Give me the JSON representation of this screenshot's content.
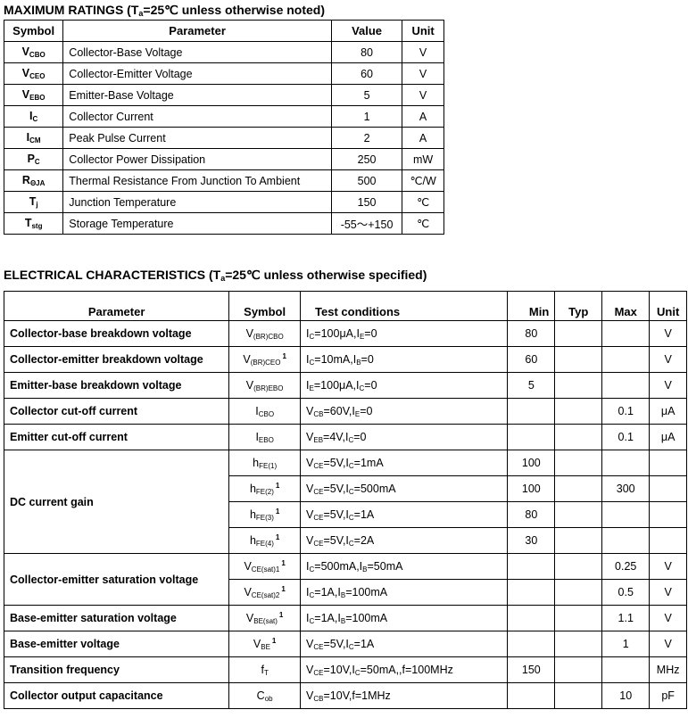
{
  "max_ratings": {
    "title_pre": "MAXIMUM RATINGS (T",
    "title_sub": "a",
    "title_post": "=25℃ unless otherwise noted)",
    "headers": [
      "Symbol",
      "Parameter",
      "Value",
      "Unit"
    ],
    "rows": [
      {
        "symbol": {
          "main": "V",
          "sub": "CBO"
        },
        "parameter": "Collector-Base Voltage",
        "value": "80",
        "unit": "V"
      },
      {
        "symbol": {
          "main": "V",
          "sub": "CEO"
        },
        "parameter": "Collector-Emitter Voltage",
        "value": "60",
        "unit": "V"
      },
      {
        "symbol": {
          "main": "V",
          "sub": "EBO"
        },
        "parameter": "Emitter-Base Voltage",
        "value": "5",
        "unit": "V"
      },
      {
        "symbol": {
          "main": "I",
          "sub": "C"
        },
        "parameter": "Collector Current",
        "value": "1",
        "unit": "A"
      },
      {
        "symbol": {
          "main": "I",
          "sub": "CM"
        },
        "parameter": "Peak Pulse Current",
        "value": "2",
        "unit": "A"
      },
      {
        "symbol": {
          "main": "P",
          "sub": "C"
        },
        "parameter": "Collector Power Dissipation",
        "value": "250",
        "unit": "mW"
      },
      {
        "symbol": {
          "main": "R",
          "sub": "ΘJA"
        },
        "parameter": "Thermal Resistance From Junction To Ambient",
        "value": "500",
        "unit": "℃/W"
      },
      {
        "symbol": {
          "main": "T",
          "sub": "j"
        },
        "parameter": "Junction Temperature",
        "value": "150",
        "unit": "℃"
      },
      {
        "symbol": {
          "main": "T",
          "sub": "stg"
        },
        "parameter": "Storage Temperature",
        "value": "-55～+150",
        "unit": "℃"
      }
    ]
  },
  "electrical": {
    "title_pre": "ELECTRICAL CHARACTERISTICS (T",
    "title_sub": "a",
    "title_post": "=25℃ unless otherwise specified)",
    "headers": [
      "Parameter",
      "Symbol",
      "Test  conditions",
      "Min",
      "Typ",
      "Max",
      "Unit"
    ],
    "groups": [
      {
        "parameter": "Collector-base breakdown voltage",
        "rows": [
          {
            "symbol": {
              "main": "V",
              "sub": "(BR)CBO"
            },
            "cond": [
              "I",
              {
                "sub": "C"
              },
              "=100μA,I",
              {
                "sub": "E"
              },
              "=0"
            ],
            "min": "80",
            "typ": "",
            "max": "",
            "unit": "V"
          }
        ]
      },
      {
        "parameter": "Collector-emitter breakdown voltage",
        "rows": [
          {
            "symbol": {
              "main": "V",
              "sub": "(BR)CEO",
              "sup": "1"
            },
            "cond": [
              "I",
              {
                "sub": "C"
              },
              "=10mA,I",
              {
                "sub": "B"
              },
              "=0"
            ],
            "min": "60",
            "typ": "",
            "max": "",
            "unit": "V"
          }
        ]
      },
      {
        "parameter": "Emitter-base breakdown voltage",
        "rows": [
          {
            "symbol": {
              "main": "V",
              "sub": "(BR)EBO"
            },
            "cond": [
              "I",
              {
                "sub": "E"
              },
              "=100μA,I",
              {
                "sub": "C"
              },
              "=0"
            ],
            "min": "5",
            "typ": "",
            "max": "",
            "unit": "V"
          }
        ]
      },
      {
        "parameter": "Collector cut-off current",
        "rows": [
          {
            "symbol": {
              "main": "I",
              "sub": "CBO"
            },
            "cond": [
              "V",
              {
                "sub": "CB"
              },
              "=60V,I",
              {
                "sub": "E"
              },
              "=0"
            ],
            "min": "",
            "typ": "",
            "max": "0.1",
            "unit": "μA"
          }
        ]
      },
      {
        "parameter": "Emitter cut-off current",
        "rows": [
          {
            "symbol": {
              "main": "I",
              "sub": "EBO"
            },
            "cond": [
              "V",
              {
                "sub": "EB"
              },
              "=4V,I",
              {
                "sub": "C"
              },
              "=0"
            ],
            "min": "",
            "typ": "",
            "max": "0.1",
            "unit": "μA"
          }
        ]
      },
      {
        "parameter": "DC current gain",
        "rows": [
          {
            "symbol": {
              "main": "h",
              "sub": "FE(1)"
            },
            "cond": [
              "V",
              {
                "sub": "CE"
              },
              "=5V,I",
              {
                "sub": "C"
              },
              "=1mA"
            ],
            "min": "100",
            "typ": "",
            "max": "",
            "unit": ""
          },
          {
            "symbol": {
              "main": "h",
              "sub": "FE(2)",
              "sup": "1"
            },
            "cond": [
              "V",
              {
                "sub": "CE"
              },
              "=5V,I",
              {
                "sub": "C"
              },
              "=500mA"
            ],
            "min": "100",
            "typ": "",
            "max": "300",
            "unit": ""
          },
          {
            "symbol": {
              "main": "h",
              "sub": "FE(3)",
              "sup": "1"
            },
            "cond": [
              "V",
              {
                "sub": "CE"
              },
              "=5V,I",
              {
                "sub": "C"
              },
              "=1A"
            ],
            "min": "80",
            "typ": "",
            "max": "",
            "unit": ""
          },
          {
            "symbol": {
              "main": "h",
              "sub": "FE(4)",
              "sup": "1"
            },
            "cond": [
              "V",
              {
                "sub": "CE"
              },
              "=5V,I",
              {
                "sub": "C"
              },
              "=2A"
            ],
            "min": "30",
            "typ": "",
            "max": "",
            "unit": ""
          }
        ]
      },
      {
        "parameter": "Collector-emitter saturation voltage",
        "rows": [
          {
            "symbol": {
              "main": "V",
              "sub": "CE(sat)1",
              "sup": "1"
            },
            "cond": [
              "I",
              {
                "sub": "C"
              },
              "=500mA,I",
              {
                "sub": "B"
              },
              "=50mA"
            ],
            "min": "",
            "typ": "",
            "max": "0.25",
            "unit": "V"
          },
          {
            "symbol": {
              "main": "V",
              "sub": "CE(sat)2",
              "sup": "1"
            },
            "cond": [
              "I",
              {
                "sub": "C"
              },
              "=1A,I",
              {
                "sub": "B"
              },
              "=100mA"
            ],
            "min": "",
            "typ": "",
            "max": "0.5",
            "unit": "V"
          }
        ]
      },
      {
        "parameter": "Base-emitter saturation voltage",
        "rows": [
          {
            "symbol": {
              "main": "V",
              "sub": "BE(sat)",
              "sup": "1"
            },
            "cond": [
              "I",
              {
                "sub": "C"
              },
              "=1A,I",
              {
                "sub": "B"
              },
              "=100mA"
            ],
            "min": "",
            "typ": "",
            "max": "1.1",
            "unit": "V"
          }
        ]
      },
      {
        "parameter": "Base-emitter voltage",
        "rows": [
          {
            "symbol": {
              "main": "V",
              "sub": "BE",
              "sup": "1"
            },
            "cond": [
              "V",
              {
                "sub": "CE"
              },
              "=5V,I",
              {
                "sub": "C"
              },
              "=1A"
            ],
            "min": "",
            "typ": "",
            "max": "1",
            "unit": "V"
          }
        ]
      },
      {
        "parameter": "Transition frequency",
        "rows": [
          {
            "symbol": {
              "main": "f",
              "sub": "T"
            },
            "cond": [
              "V",
              {
                "sub": "CE"
              },
              "=10V,I",
              {
                "sub": "C"
              },
              "=50mA,,f=100MHz"
            ],
            "min": "150",
            "typ": "",
            "max": "",
            "unit": "MHz"
          }
        ]
      },
      {
        "parameter": "Collector output capacitance",
        "rows": [
          {
            "symbol": {
              "main": "C",
              "sub": "ob"
            },
            "cond": [
              "V",
              {
                "sub": "CB"
              },
              "=10V,f=1MHz"
            ],
            "min": "",
            "typ": "",
            "max": "10",
            "unit": "pF"
          }
        ]
      }
    ]
  }
}
